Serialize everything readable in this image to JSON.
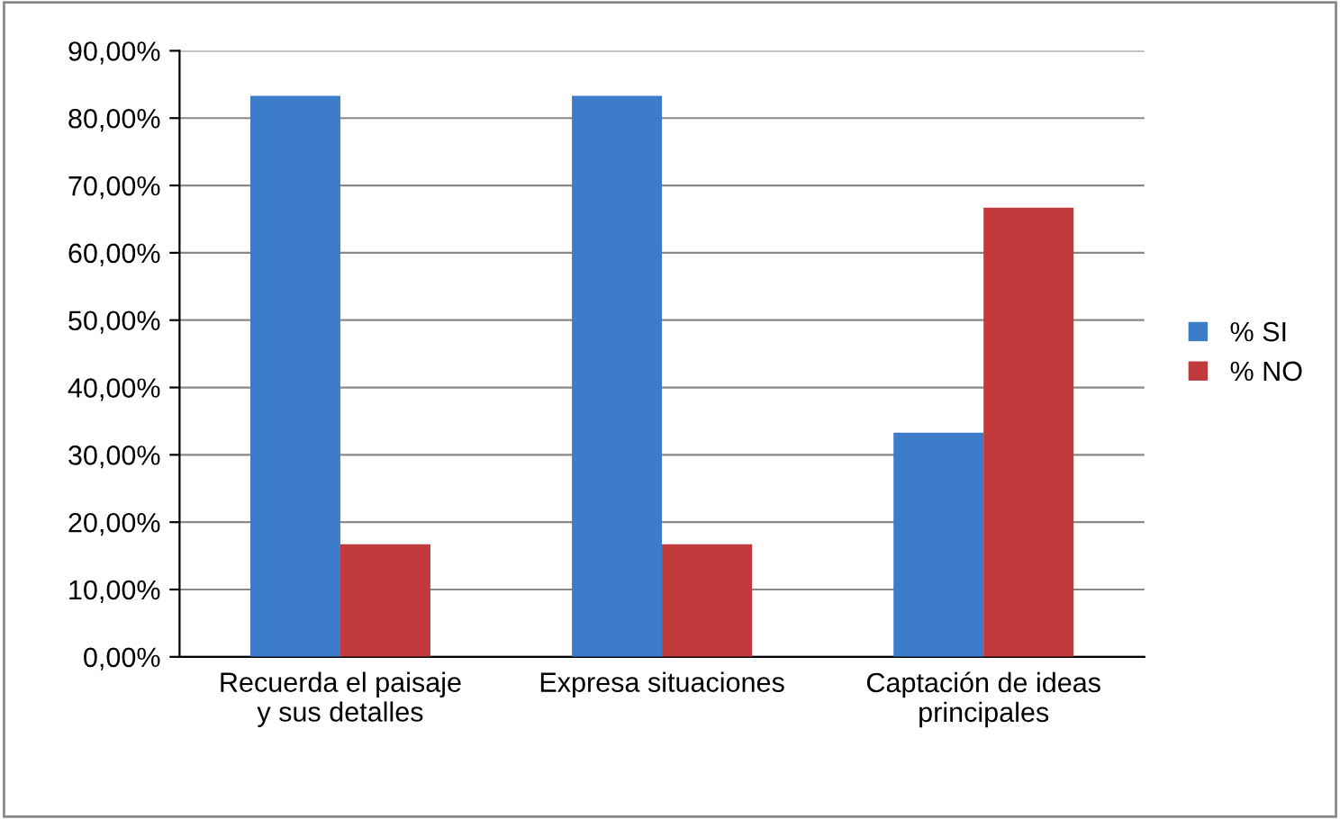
{
  "chart_data": {
    "type": "bar",
    "categories": [
      "Recuerda el paisaje\ny sus detalles",
      "Expresa situaciones",
      "Captación de ideas\nprincipales"
    ],
    "series": [
      {
        "name": "% SI",
        "color": "#3d7cc9",
        "values": [
          83.3,
          83.3,
          33.3
        ]
      },
      {
        "name": "% NO",
        "color": "#c0393b",
        "values": [
          16.7,
          16.7,
          66.7
        ]
      }
    ],
    "ylim": [
      0,
      90
    ],
    "yticks": [
      {
        "value": 0,
        "label": "0,00%"
      },
      {
        "value": 10,
        "label": "10,00%"
      },
      {
        "value": 20,
        "label": "20,00%"
      },
      {
        "value": 30,
        "label": "30,00%"
      },
      {
        "value": 40,
        "label": "40,00%"
      },
      {
        "value": 50,
        "label": "50,00%"
      },
      {
        "value": 60,
        "label": "60,00%"
      },
      {
        "value": 70,
        "label": "70,00%"
      },
      {
        "value": 80,
        "label": "80,00%"
      },
      {
        "value": 90,
        "label": "90,00%"
      }
    ],
    "grid": "y",
    "legend": "right"
  }
}
